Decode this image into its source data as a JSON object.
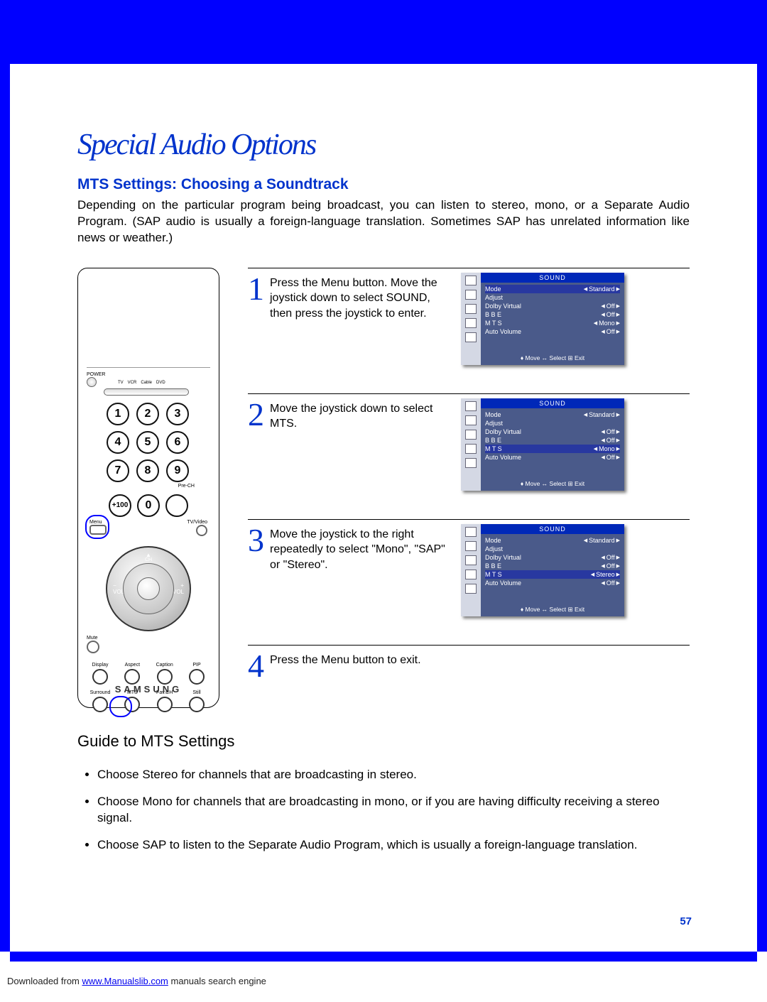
{
  "title": "Special Audio Options",
  "subtitle": "MTS Settings: Choosing a Soundtrack",
  "intro": "Depending on the particular program being broadcast, you can listen to stereo, mono, or a Separate Audio Program. (SAP audio is usually a foreign-language translation. Sometimes SAP has unrelated information like news or weather.)",
  "remote": {
    "power": "POWER",
    "devices": [
      "TV",
      "VCR",
      "Cable",
      "DVD"
    ],
    "prech": "Pre-CH",
    "plus100": "+100",
    "menu": "Menu",
    "tvvideo": "TV/Video",
    "mute": "Mute",
    "row1": [
      "Display",
      "Aspect",
      "Caption",
      "PIP"
    ],
    "row2": [
      "Surround",
      "MTS",
      "Fav.CH",
      "Still"
    ],
    "ch": "CH",
    "vol": "VOL",
    "brand": "SAMSUNG"
  },
  "steps": [
    {
      "n": "1",
      "text": "Press the Menu button. Move the joystick down to select SOUND, then press the joystick to enter."
    },
    {
      "n": "2",
      "text": "Move the joystick down to select MTS."
    },
    {
      "n": "3",
      "text": "Move the joystick to the right repeatedly to select \"Mono\", \"SAP\" or \"Stereo\"."
    },
    {
      "n": "4",
      "text": "Press the Menu button to exit."
    }
  ],
  "osd": {
    "title": "SOUND",
    "rows": [
      {
        "label": "Mode",
        "value": "Standard"
      },
      {
        "label": "Adjust",
        "value": ""
      },
      {
        "label": "Dolby Virtual",
        "value": "Off"
      },
      {
        "label": "B B E",
        "value": "Off"
      },
      {
        "label": "M T S",
        "value": "Mono"
      },
      {
        "label": "Auto Volume",
        "value": "Off"
      }
    ],
    "rows3": [
      {
        "label": "Mode",
        "value": "Standard"
      },
      {
        "label": "Adjust",
        "value": ""
      },
      {
        "label": "Dolby Virtual",
        "value": "Off"
      },
      {
        "label": "B B E",
        "value": "Off"
      },
      {
        "label": "M T S",
        "value": "Stereo"
      },
      {
        "label": "Auto Volume",
        "value": "Off"
      }
    ],
    "help": "♦ Move   ↔ Select   ⊞ Exit",
    "selected": [
      0,
      4,
      4
    ]
  },
  "guide": {
    "heading": "Guide to MTS Settings",
    "items": [
      "Choose Stereo for channels that are broadcasting in stereo.",
      "Choose Mono for channels that are broadcasting in mono, or if you are having difficulty receiving a stereo signal.",
      "Choose SAP to listen to the Separate Audio Program, which is usually a foreign-language translation."
    ]
  },
  "pagenum": "57",
  "footer": {
    "pre": "Downloaded from ",
    "link": "www.Manualslib.com",
    "post": " manuals search engine"
  }
}
